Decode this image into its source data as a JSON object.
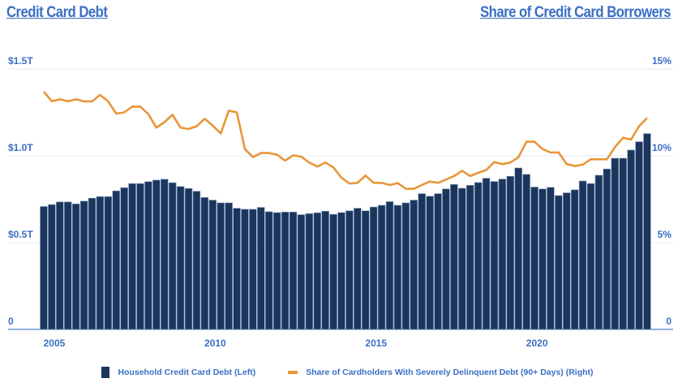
{
  "titles": {
    "left": "Credit Card Debt",
    "right": "Share of Credit Card Borrowers"
  },
  "colors": {
    "bar": "#1b365d",
    "line": "#e8963a",
    "axis_text": "#3a6fc4",
    "grid": "#e3e9f6"
  },
  "chart_data": {
    "type": "bar+line",
    "x_start": "2005 Q1",
    "x_end": "2023 Q4",
    "frequency": "quarterly",
    "x_ticks": [
      "2005",
      "2010",
      "2015",
      "2020"
    ],
    "y_left": {
      "ticks": [
        "0",
        "$0.5T",
        "$1.0T",
        "$1.5T"
      ],
      "range": [
        0,
        1.5
      ],
      "unit": "trillions USD"
    },
    "y_right": {
      "ticks": [
        "0",
        "5%",
        "10%",
        "15%"
      ],
      "range": [
        0,
        15
      ],
      "unit": "percent"
    },
    "grid": true,
    "legend_placement": "bottom",
    "series": [
      {
        "name": "Household Credit Card Debt (Left)",
        "type": "bar",
        "axis": "left",
        "values": [
          0.708,
          0.719,
          0.734,
          0.734,
          0.723,
          0.739,
          0.756,
          0.765,
          0.765,
          0.798,
          0.816,
          0.84,
          0.84,
          0.851,
          0.86,
          0.865,
          0.845,
          0.823,
          0.812,
          0.796,
          0.76,
          0.745,
          0.729,
          0.729,
          0.698,
          0.692,
          0.692,
          0.703,
          0.678,
          0.673,
          0.676,
          0.676,
          0.661,
          0.667,
          0.672,
          0.681,
          0.663,
          0.673,
          0.683,
          0.698,
          0.683,
          0.705,
          0.715,
          0.736,
          0.715,
          0.729,
          0.745,
          0.782,
          0.767,
          0.782,
          0.809,
          0.835,
          0.813,
          0.83,
          0.846,
          0.871,
          0.852,
          0.866,
          0.882,
          0.93,
          0.893,
          0.82,
          0.809,
          0.818,
          0.771,
          0.787,
          0.804,
          0.855,
          0.84,
          0.888,
          0.924,
          0.986,
          0.986,
          1.033,
          1.081,
          1.128
        ]
      },
      {
        "name": "Share of Cardholders With Severely Delinquent Debt (90+ Days) (Right)",
        "type": "line",
        "axis": "right",
        "values": [
          13.69,
          13.14,
          13.25,
          13.14,
          13.25,
          13.13,
          13.13,
          13.5,
          13.14,
          12.43,
          12.5,
          12.83,
          12.83,
          12.4,
          11.62,
          11.94,
          12.36,
          11.62,
          11.54,
          11.7,
          12.13,
          11.74,
          11.28,
          12.6,
          12.5,
          10.39,
          9.92,
          10.16,
          10.16,
          10.06,
          9.72,
          10.03,
          9.95,
          9.61,
          9.38,
          9.61,
          9.33,
          8.74,
          8.4,
          8.44,
          8.86,
          8.44,
          8.44,
          8.32,
          8.43,
          8.1,
          8.1,
          8.32,
          8.52,
          8.44,
          8.63,
          8.83,
          9.14,
          8.83,
          9.02,
          9.18,
          9.64,
          9.52,
          9.61,
          9.91,
          10.81,
          10.81,
          10.39,
          10.19,
          10.19,
          9.52,
          9.41,
          9.49,
          9.8,
          9.8,
          9.8,
          10.5,
          11.04,
          10.93,
          11.7,
          12.18
        ]
      }
    ]
  }
}
